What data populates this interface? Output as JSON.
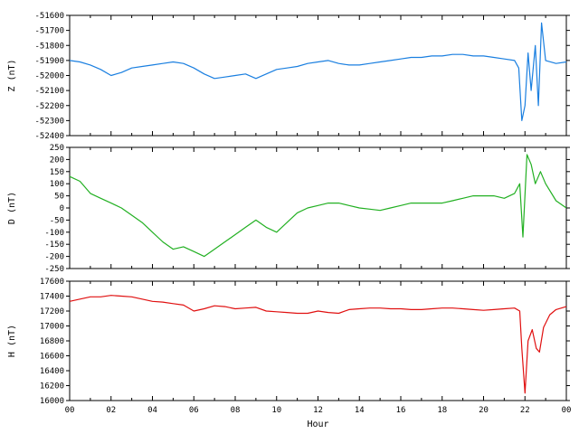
{
  "chart_data": {
    "type": "line",
    "xlabel": "Hour",
    "xlim": [
      0,
      24
    ],
    "x_ticks": [
      "00",
      "02",
      "04",
      "06",
      "08",
      "10",
      "12",
      "14",
      "16",
      "18",
      "20",
      "22",
      "00"
    ],
    "grid": false,
    "panels": [
      {
        "name": "Z",
        "ylabel": "Z (nT)",
        "ylim": [
          -52400,
          -51600
        ],
        "y_ticks": [
          "-51600",
          "-51700",
          "-51800",
          "-51900",
          "-52000",
          "-52100",
          "-52200",
          "-52300",
          "-52400"
        ],
        "color": "#1a7fe0",
        "series": {
          "x": [
            0,
            0.5,
            1,
            1.5,
            2,
            2.5,
            3,
            3.5,
            4,
            4.5,
            5,
            5.5,
            6,
            6.5,
            7,
            7.5,
            8,
            8.5,
            9,
            9.5,
            10,
            10.5,
            11,
            11.5,
            12,
            12.5,
            13,
            13.5,
            14,
            14.5,
            15,
            15.5,
            16,
            16.5,
            17,
            17.5,
            18,
            18.5,
            19,
            19.5,
            20,
            20.5,
            21,
            21.5,
            21.7,
            21.85,
            22,
            22.15,
            22.3,
            22.5,
            22.65,
            22.8,
            23,
            23.5,
            24
          ],
          "y": [
            -51900,
            -51910,
            -51930,
            -51960,
            -52000,
            -51980,
            -51950,
            -51940,
            -51930,
            -51920,
            -51910,
            -51920,
            -51950,
            -51990,
            -52020,
            -52010,
            -52000,
            -51990,
            -52020,
            -51990,
            -51960,
            -51950,
            -51940,
            -51920,
            -51910,
            -51900,
            -51920,
            -51930,
            -51930,
            -51920,
            -51910,
            -51900,
            -51890,
            -51880,
            -51880,
            -51870,
            -51870,
            -51860,
            -51860,
            -51870,
            -51870,
            -51880,
            -51890,
            -51900,
            -51950,
            -52300,
            -52200,
            -51850,
            -52100,
            -51800,
            -52200,
            -51650,
            -51900,
            -51920,
            -51910
          ]
        }
      },
      {
        "name": "D",
        "ylabel": "D (nT)",
        "ylim": [
          -250,
          250
        ],
        "y_ticks": [
          "250",
          "200",
          "150",
          "100",
          "50",
          "0",
          "-50",
          "-100",
          "-150",
          "-200",
          "-250"
        ],
        "color": "#22b022",
        "series": {
          "x": [
            0,
            0.5,
            1,
            1.5,
            2,
            2.5,
            3,
            3.5,
            4,
            4.5,
            5,
            5.5,
            6,
            6.5,
            7,
            7.5,
            8,
            8.5,
            9,
            9.5,
            10,
            10.5,
            11,
            11.5,
            12,
            12.5,
            13,
            13.5,
            14,
            14.5,
            15,
            15.5,
            16,
            16.5,
            17,
            17.5,
            18,
            18.5,
            19,
            19.5,
            20,
            20.5,
            21,
            21.5,
            21.75,
            21.9,
            22.1,
            22.3,
            22.5,
            22.75,
            23,
            23.5,
            24
          ],
          "y": [
            130,
            110,
            60,
            40,
            20,
            0,
            -30,
            -60,
            -100,
            -140,
            -170,
            -160,
            -180,
            -200,
            -170,
            -140,
            -110,
            -80,
            -50,
            -80,
            -100,
            -60,
            -20,
            0,
            10,
            20,
            20,
            10,
            0,
            -5,
            -10,
            0,
            10,
            20,
            20,
            20,
            20,
            30,
            40,
            50,
            50,
            50,
            40,
            60,
            100,
            -120,
            220,
            180,
            100,
            150,
            100,
            30,
            0
          ]
        }
      },
      {
        "name": "H",
        "ylabel": "H (nT)",
        "ylim": [
          16000,
          17600
        ],
        "y_ticks": [
          "17600",
          "17400",
          "17200",
          "17000",
          "16800",
          "16600",
          "16400",
          "16200",
          "16000"
        ],
        "color": "#e01010",
        "series": {
          "x": [
            0,
            0.5,
            1,
            1.5,
            2,
            2.5,
            3,
            3.5,
            4,
            4.5,
            5,
            5.5,
            6,
            6.5,
            7,
            7.5,
            8,
            8.5,
            9,
            9.5,
            10,
            10.5,
            11,
            11.5,
            12,
            12.5,
            13,
            13.5,
            14,
            14.5,
            15,
            15.5,
            16,
            16.5,
            17,
            17.5,
            18,
            18.5,
            19,
            19.5,
            20,
            20.5,
            21,
            21.5,
            21.75,
            21.85,
            22,
            22.15,
            22.35,
            22.55,
            22.7,
            22.9,
            23.2,
            23.5,
            24
          ],
          "y": [
            17330,
            17360,
            17390,
            17390,
            17410,
            17400,
            17390,
            17360,
            17330,
            17320,
            17300,
            17280,
            17200,
            17230,
            17270,
            17260,
            17230,
            17240,
            17250,
            17200,
            17190,
            17180,
            17170,
            17170,
            17200,
            17180,
            17170,
            17220,
            17230,
            17240,
            17240,
            17230,
            17230,
            17220,
            17220,
            17230,
            17240,
            17240,
            17230,
            17220,
            17210,
            17220,
            17230,
            17240,
            17200,
            16700,
            16100,
            16800,
            16950,
            16700,
            16650,
            16980,
            17150,
            17220,
            17260
          ]
        }
      }
    ]
  }
}
